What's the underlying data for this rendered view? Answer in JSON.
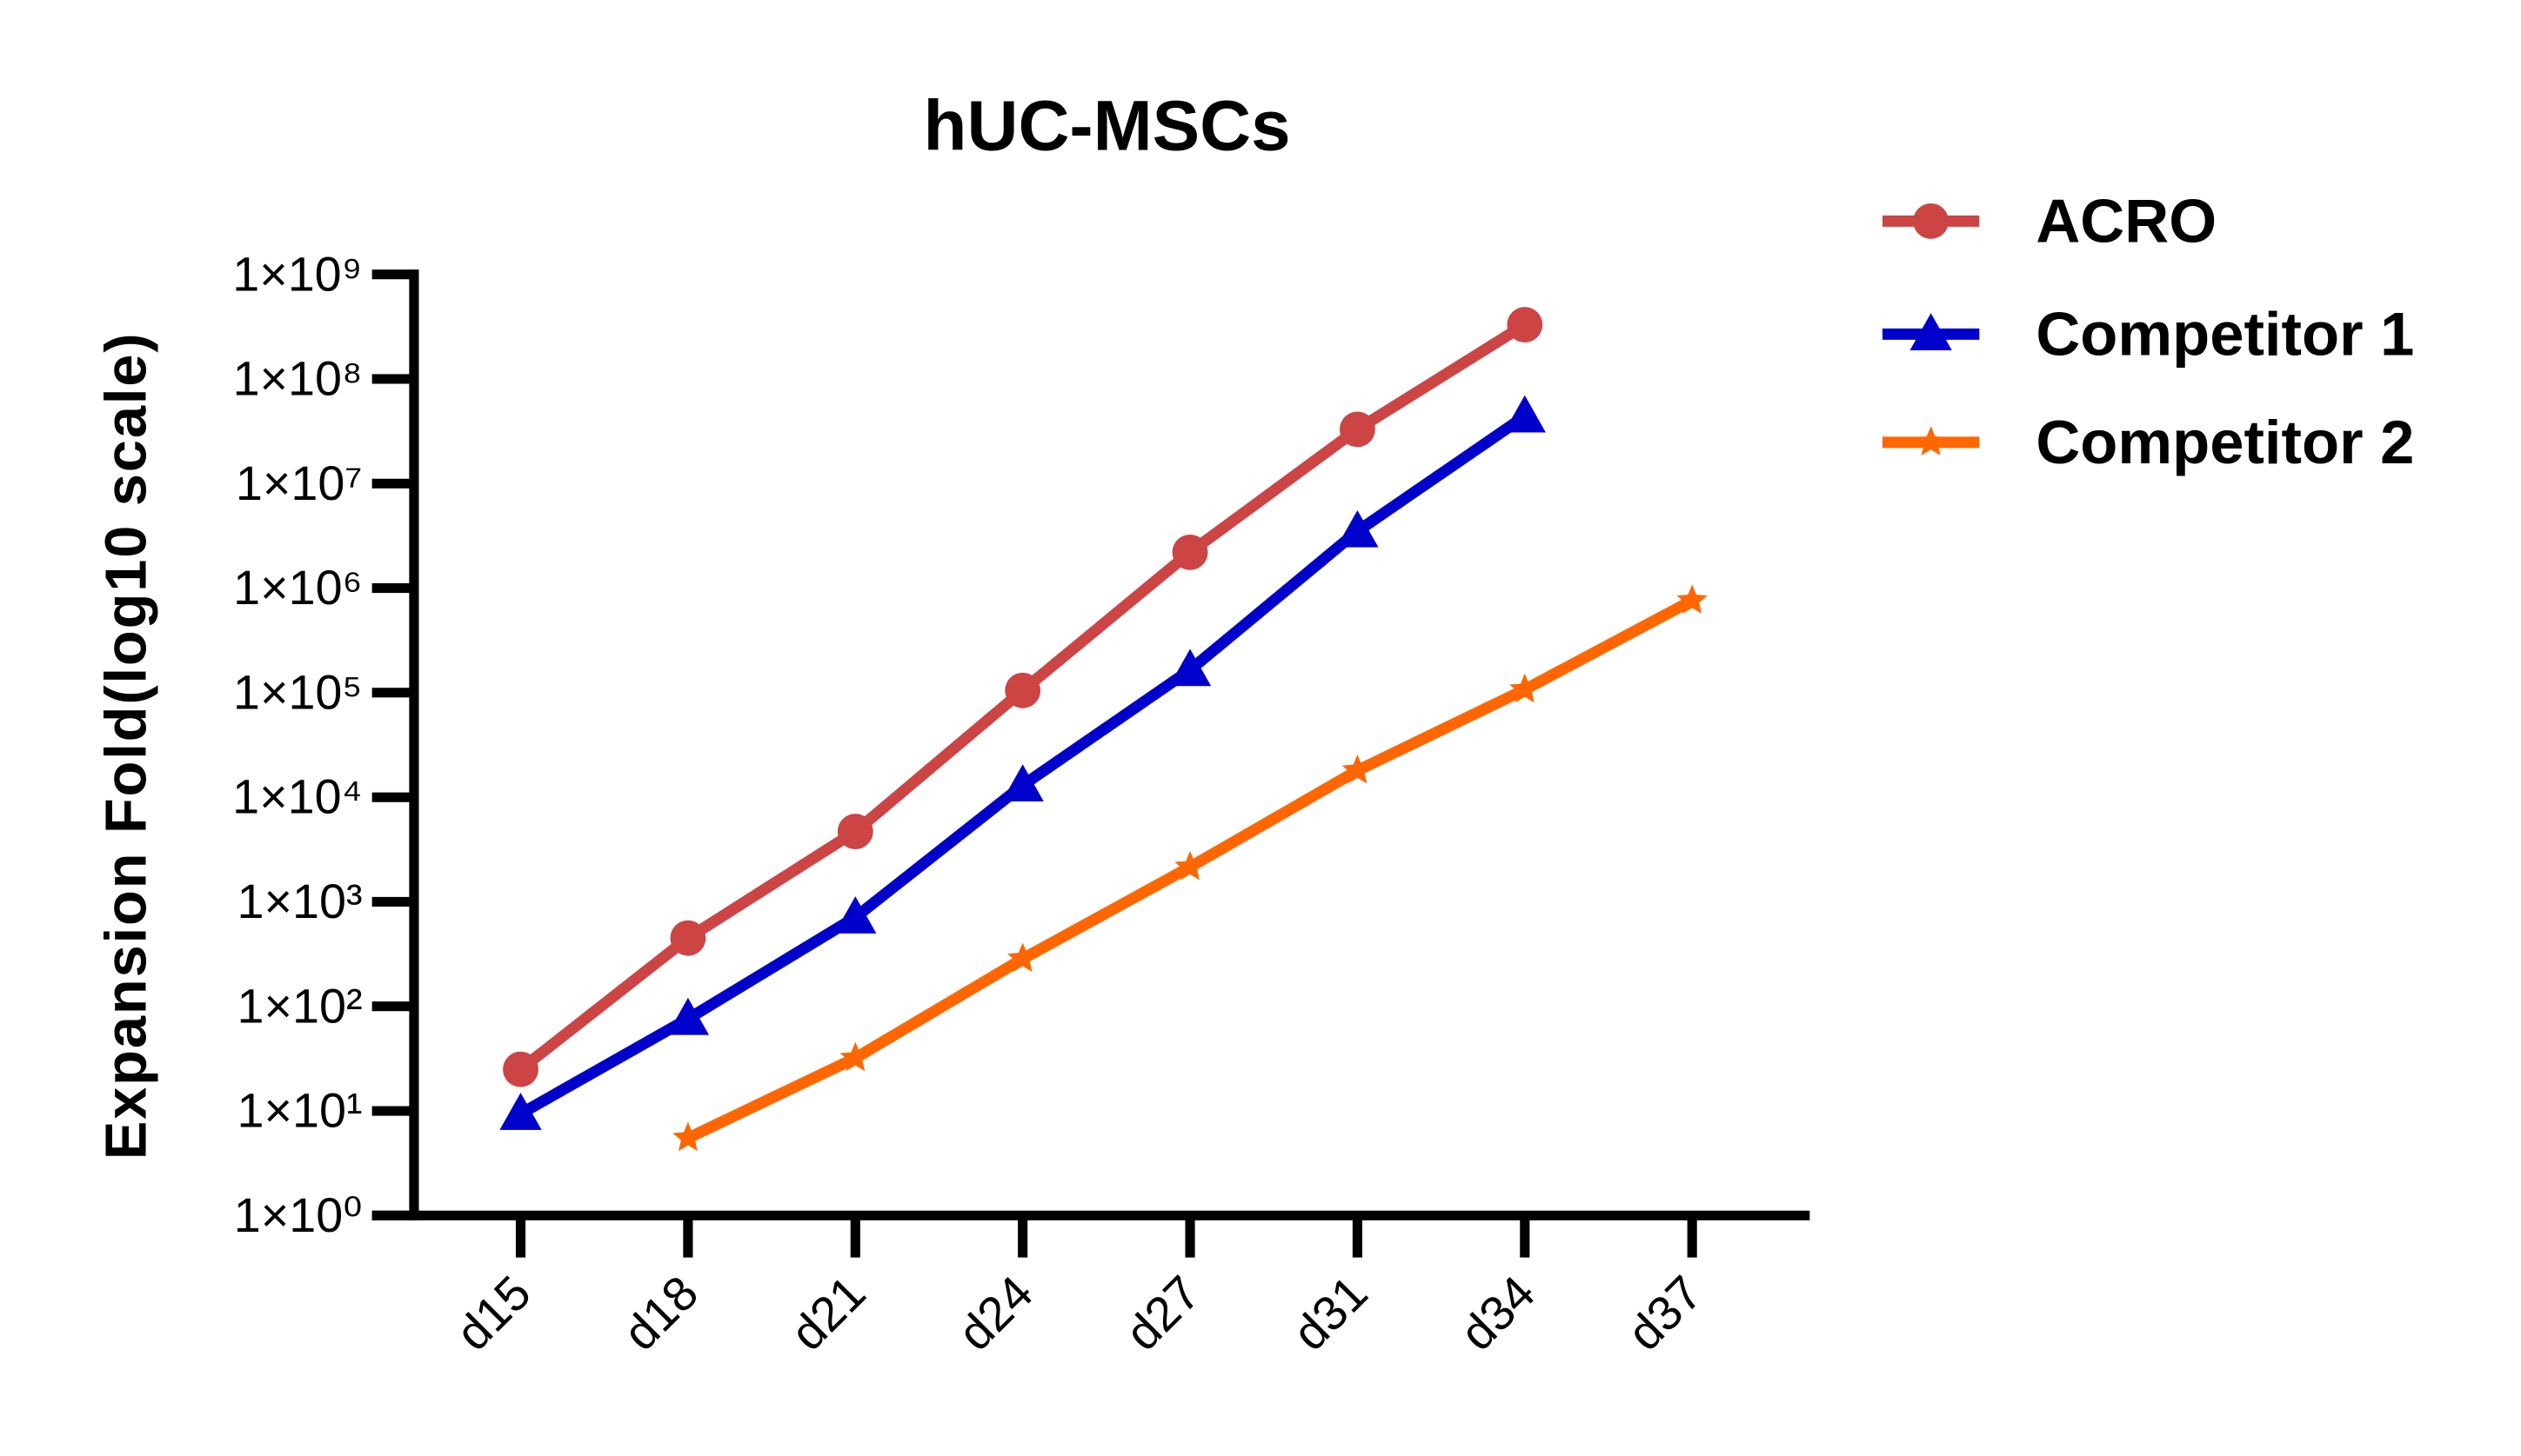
{
  "chart_data": {
    "type": "line",
    "title": "hUC-MSCs",
    "xlabel": "",
    "ylabel": "Expansion Fold(log10 scale)",
    "y_scale": "log10",
    "ylim": [
      1,
      1000000000
    ],
    "y_tick_labels": [
      "1×10⁰",
      "1×10¹",
      "1×10²",
      "1×10³",
      "1×10⁴",
      "1×10⁵",
      "1×10⁶",
      "1×10⁷",
      "1×10⁸",
      "1×10⁹"
    ],
    "categories": [
      "d15",
      "d18",
      "d21",
      "d24",
      "d27",
      "d31",
      "d34",
      "d37"
    ],
    "grid": false,
    "legend_position": "top-right",
    "series": [
      {
        "name": "ACRO",
        "color": "#cc4444",
        "marker": "circle",
        "values": [
          25,
          450,
          4700,
          105000,
          2200000,
          33000000,
          330000000,
          null
        ]
      },
      {
        "name": "Competitor 1",
        "color": "#0000cc",
        "marker": "triangle",
        "values": [
          9.4,
          76,
          710,
          13000,
          165000,
          3500000,
          44000000,
          null
        ]
      },
      {
        "name": "Competitor 2",
        "color": "#ff6600",
        "marker": "star",
        "values": [
          null,
          5.5,
          32,
          285,
          2150,
          18000,
          107000,
          760000
        ]
      }
    ]
  }
}
